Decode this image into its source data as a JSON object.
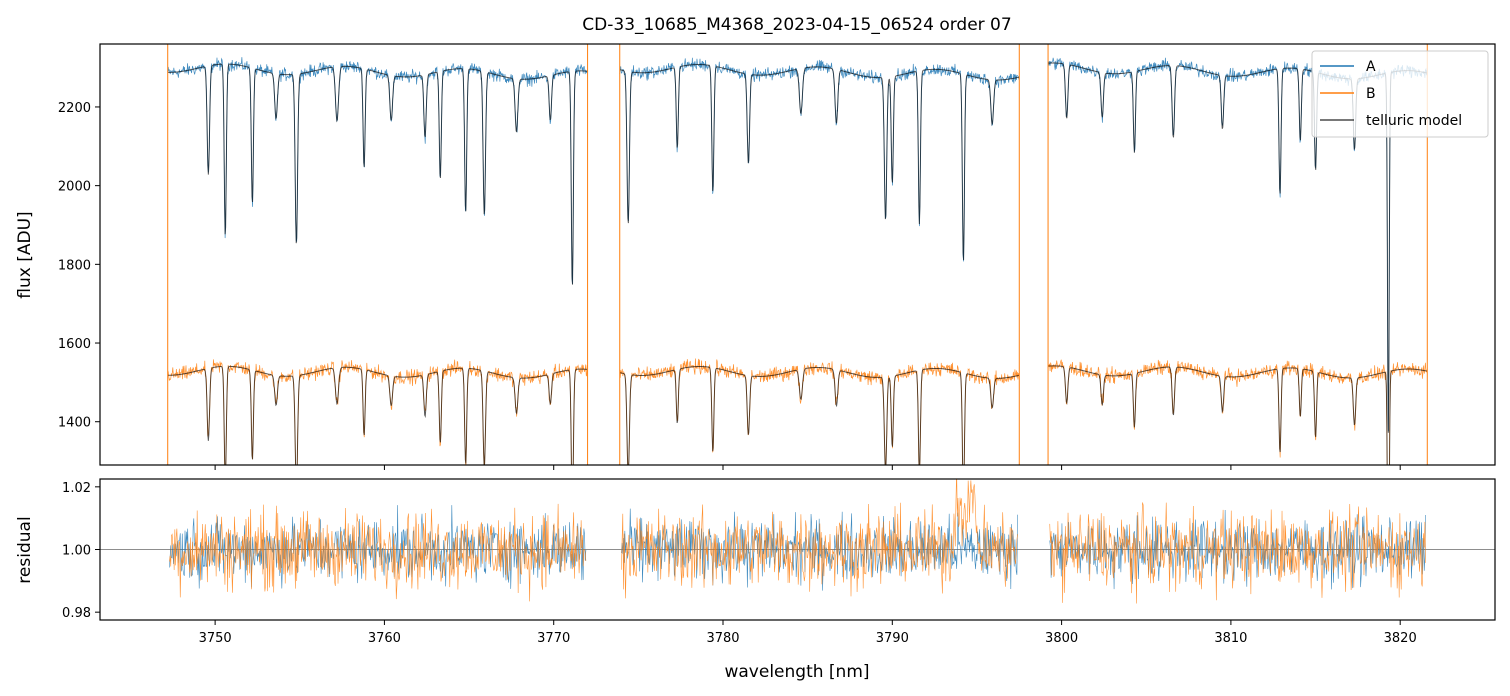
{
  "chart_data": [
    {
      "type": "line",
      "panel": "top",
      "title": "CD-33_10685_M4368_2023-04-15_06524  order 07",
      "xlabel": "",
      "ylabel": "flux [ADU]",
      "xlim": [
        3743.2,
        3825.6
      ],
      "ylim": [
        1290,
        2360
      ],
      "yticks": [
        1400,
        1600,
        1800,
        2000,
        2200
      ],
      "xticks": [
        3750,
        3760,
        3770,
        3780,
        3790,
        3800,
        3810,
        3820
      ],
      "legend_position": "upper right",
      "series": [
        {
          "name": "A",
          "color": "#1f77b4",
          "baseline": 2300,
          "tilt": -0.9,
          "noise": 14
        },
        {
          "name": "B",
          "color": "#ff7f0e",
          "baseline": 1530,
          "tilt": -0.55,
          "noise": 16
        },
        {
          "name": "telluric model",
          "color": "#000000"
        }
      ],
      "segments": [
        [
          3747.2,
          3772.0
        ],
        [
          3773.9,
          3797.5
        ],
        [
          3799.2,
          3821.6
        ]
      ],
      "absorption_lines": [
        {
          "x": 3749.6,
          "depth": 0.12,
          "width": 0.07
        },
        {
          "x": 3750.6,
          "depth": 0.19,
          "width": 0.06
        },
        {
          "x": 3752.2,
          "depth": 0.15,
          "width": 0.06
        },
        {
          "x": 3753.6,
          "depth": 0.05,
          "width": 0.08
        },
        {
          "x": 3754.8,
          "depth": 0.19,
          "width": 0.07
        },
        {
          "x": 3757.2,
          "depth": 0.06,
          "width": 0.09
        },
        {
          "x": 3758.8,
          "depth": 0.11,
          "width": 0.06
        },
        {
          "x": 3760.4,
          "depth": 0.05,
          "width": 0.08
        },
        {
          "x": 3762.4,
          "depth": 0.07,
          "width": 0.07
        },
        {
          "x": 3763.3,
          "depth": 0.12,
          "width": 0.06
        },
        {
          "x": 3764.8,
          "depth": 0.16,
          "width": 0.06
        },
        {
          "x": 3765.9,
          "depth": 0.16,
          "width": 0.07
        },
        {
          "x": 3767.8,
          "depth": 0.06,
          "width": 0.08
        },
        {
          "x": 3769.8,
          "depth": 0.05,
          "width": 0.07
        },
        {
          "x": 3771.1,
          "depth": 0.24,
          "width": 0.06
        },
        {
          "x": 3774.4,
          "depth": 0.17,
          "width": 0.07
        },
        {
          "x": 3777.3,
          "depth": 0.09,
          "width": 0.06
        },
        {
          "x": 3779.4,
          "depth": 0.14,
          "width": 0.06
        },
        {
          "x": 3781.5,
          "depth": 0.1,
          "width": 0.07
        },
        {
          "x": 3784.6,
          "depth": 0.05,
          "width": 0.09
        },
        {
          "x": 3786.7,
          "depth": 0.06,
          "width": 0.08
        },
        {
          "x": 3789.6,
          "depth": 0.16,
          "width": 0.07
        },
        {
          "x": 3790.0,
          "depth": 0.12,
          "width": 0.06
        },
        {
          "x": 3791.6,
          "depth": 0.17,
          "width": 0.06
        },
        {
          "x": 3794.2,
          "depth": 0.21,
          "width": 0.06
        },
        {
          "x": 3795.9,
          "depth": 0.05,
          "width": 0.08
        },
        {
          "x": 3800.3,
          "depth": 0.06,
          "width": 0.07
        },
        {
          "x": 3802.4,
          "depth": 0.05,
          "width": 0.07
        },
        {
          "x": 3804.3,
          "depth": 0.09,
          "width": 0.06
        },
        {
          "x": 3806.6,
          "depth": 0.08,
          "width": 0.07
        },
        {
          "x": 3809.5,
          "depth": 0.06,
          "width": 0.07
        },
        {
          "x": 3812.9,
          "depth": 0.14,
          "width": 0.06
        },
        {
          "x": 3814.1,
          "depth": 0.08,
          "width": 0.06
        },
        {
          "x": 3815.0,
          "depth": 0.11,
          "width": 0.06
        },
        {
          "x": 3817.3,
          "depth": 0.08,
          "width": 0.07
        },
        {
          "x": 3819.3,
          "depth": 0.4,
          "width": 0.05
        }
      ]
    },
    {
      "type": "line",
      "panel": "bottom",
      "xlabel": "wavelength [nm]",
      "ylabel": "residual",
      "xlim": [
        3743.2,
        3825.6
      ],
      "ylim": [
        0.9775,
        1.0225
      ],
      "yticks": [
        0.98,
        1.0,
        1.02
      ],
      "ytick_labels": [
        "0.98",
        "1.00",
        "1.02"
      ],
      "xticks": [
        3750,
        3760,
        3770,
        3780,
        3790,
        3800,
        3810,
        3820
      ],
      "reference_line": 1.0,
      "series": [
        {
          "name": "A",
          "color": "#1f77b4",
          "noise": 0.0085
        },
        {
          "name": "B",
          "color": "#ff7f0e",
          "noise": 0.0105
        }
      ]
    }
  ]
}
